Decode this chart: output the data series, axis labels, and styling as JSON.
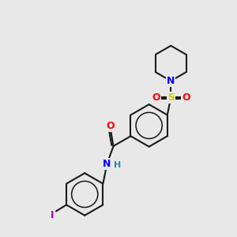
{
  "background_color": "#e8e8e8",
  "line_color": "#1a1a1a",
  "bond_width": 1.5,
  "atom_colors": {
    "N": "#0000ff",
    "O": "#ff0000",
    "S": "#cccc00",
    "I": "#aa00aa",
    "H": "#2288aa",
    "C": "#1a1a1a"
  },
  "font_size_atom": 8,
  "font_size_h": 6,
  "fig_width": 3.0,
  "fig_height": 3.0,
  "dpi": 100,
  "xlim": [
    0,
    10
  ],
  "ylim": [
    0,
    10
  ]
}
